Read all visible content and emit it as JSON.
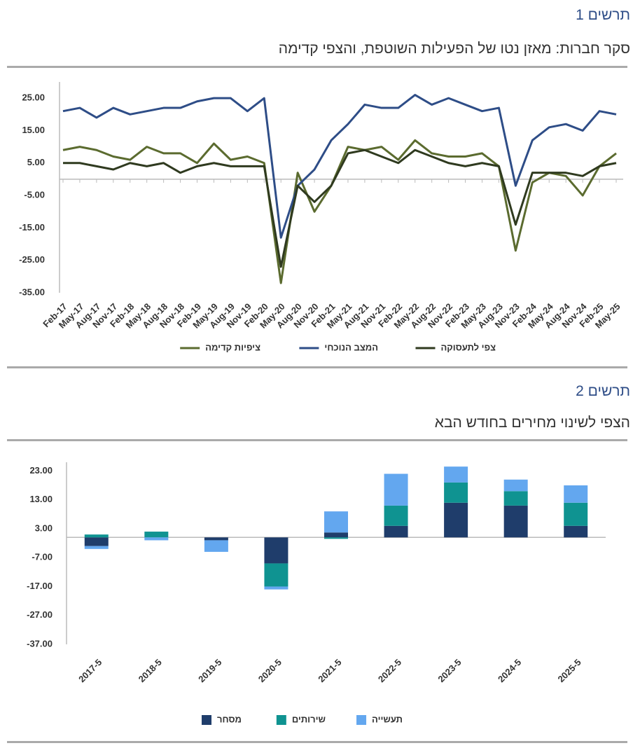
{
  "chart_data": [
    {
      "type": "line",
      "label": "תרשים 1",
      "title": "סקר חברות: מאזן נטו של הפעילות השוטפת, והצפי קדימה",
      "categories": [
        "Feb-17",
        "May-17",
        "Aug-17",
        "Nov-17",
        "Feb-18",
        "May-18",
        "Aug-18",
        "Nov-18",
        "Feb-19",
        "May-19",
        "Aug-19",
        "Nov-19",
        "Feb-20",
        "May-20",
        "Aug-20",
        "Nov-20",
        "Feb-21",
        "May-21",
        "Aug-21",
        "Nov-21",
        "Feb-22",
        "May-22",
        "Aug-22",
        "Nov-22",
        "Feb-23",
        "May-23",
        "Aug-23",
        "Nov-23",
        "Feb-24",
        "May-24",
        "Aug-24",
        "Nov-24",
        "Feb-25",
        "May-25"
      ],
      "series": [
        {
          "name": "ציפיות קדימה",
          "color": "#5b6b2f",
          "values": [
            9,
            10,
            9,
            7,
            6,
            10,
            8,
            8,
            5,
            11,
            6,
            7,
            5,
            -32,
            2,
            -10,
            -2,
            10,
            9,
            10,
            6,
            12,
            8,
            7,
            7,
            8,
            4,
            -22,
            -1,
            2,
            1,
            -5,
            4,
            8
          ]
        },
        {
          "name": "המצב הנוכחי",
          "color": "#2e4d87",
          "values": [
            21,
            22,
            19,
            22,
            20,
            21,
            22,
            22,
            24,
            25,
            25,
            21,
            25,
            -18,
            -2,
            3,
            12,
            17,
            23,
            22,
            22,
            26,
            23,
            25,
            23,
            21,
            22,
            -2,
            12,
            16,
            17,
            15,
            21,
            20
          ]
        },
        {
          "name": "צפי לתעסוקה",
          "color": "#2f3a1f",
          "values": [
            5,
            5,
            4,
            3,
            5,
            4,
            5,
            2,
            4,
            5,
            4,
            4,
            4,
            -27,
            -2,
            -7,
            -2,
            8,
            9,
            7,
            5,
            9,
            7,
            5,
            4,
            5,
            4,
            -14,
            2,
            2,
            2,
            1,
            4,
            5
          ]
        }
      ],
      "ylim": [
        -35,
        30
      ],
      "yticks": [
        {
          "value": 25,
          "label": "25.00"
        },
        {
          "value": 15,
          "label": "15.00"
        },
        {
          "value": 5,
          "label": "5.00"
        },
        {
          "value": -5,
          "label": "-5.00"
        },
        {
          "value": -15,
          "label": "-15.00"
        },
        {
          "value": -25,
          "label": "-25.00"
        },
        {
          "value": -35,
          "label": "-35.00"
        }
      ]
    },
    {
      "type": "stacked_bar",
      "label": "תרשים 2",
      "title": "הצפי לשינוי מחירים בחודש הבא",
      "categories": [
        "2017-5",
        "2018-5",
        "2019-5",
        "2020-5",
        "2021-5",
        "2022-5",
        "2023-5",
        "2024-5",
        "2025-5"
      ],
      "series": [
        {
          "name": "מסחר",
          "color": "#1f3d6b",
          "values": [
            -3,
            0,
            -1,
            -9,
            1.7,
            4,
            12,
            11,
            4
          ]
        },
        {
          "name": "שירותים",
          "color": "#0f9391",
          "values": [
            1,
            2,
            0,
            -8,
            -0.5,
            7,
            7,
            5,
            8
          ]
        },
        {
          "name": "תעשייה",
          "color": "#63a7ef",
          "values": [
            -1,
            -1,
            -4,
            -1,
            7.3,
            11,
            5.5,
            4,
            6
          ]
        }
      ],
      "ylim": [
        -37,
        26
      ],
      "yticks": [
        {
          "value": 23,
          "label": "23.00"
        },
        {
          "value": 13,
          "label": "13.00"
        },
        {
          "value": 3,
          "label": "3.00"
        },
        {
          "value": -7,
          "label": "-7.00"
        },
        {
          "value": -17,
          "label": "-17.00"
        },
        {
          "value": -27,
          "label": "-27.00"
        },
        {
          "value": -37,
          "label": "-37.00"
        }
      ]
    }
  ]
}
